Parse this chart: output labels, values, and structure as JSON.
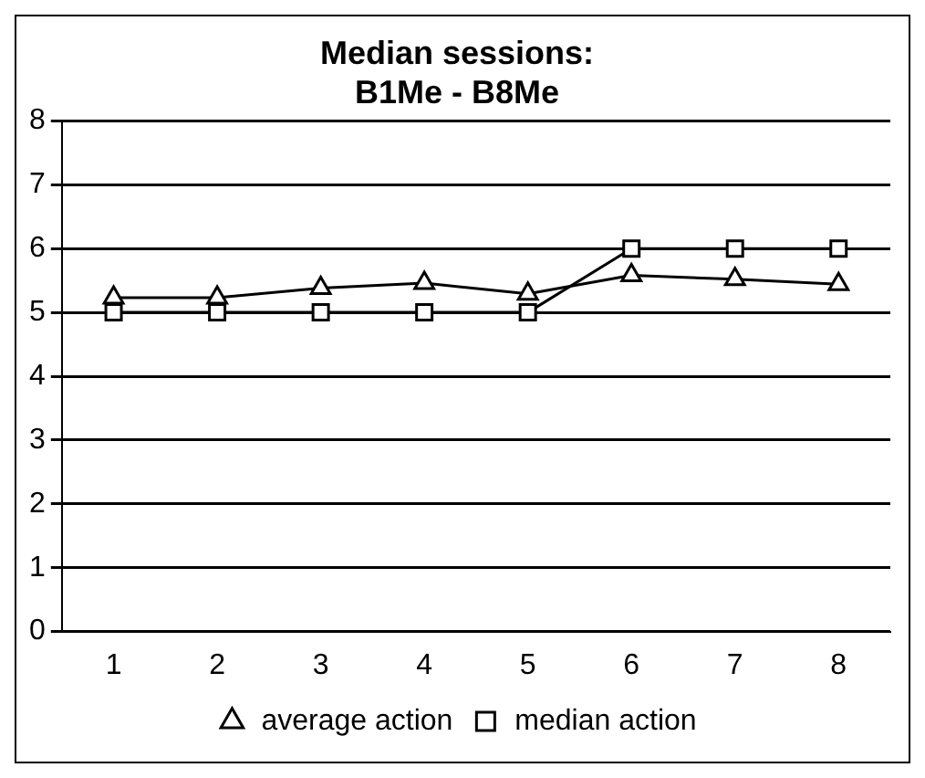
{
  "chart_data": {
    "type": "line",
    "title": [
      "Median sessions:",
      "B1Me - B8Me"
    ],
    "categories": [
      "1",
      "2",
      "3",
      "4",
      "5",
      "6",
      "7",
      "8"
    ],
    "series": [
      {
        "name": "average action",
        "color": "#000000",
        "marker": "triangle",
        "values": [
          5.23,
          5.23,
          5.38,
          5.46,
          5.29,
          5.58,
          5.52,
          5.44
        ]
      },
      {
        "name": "median action",
        "color": "#000000",
        "marker": "square",
        "values": [
          5,
          5,
          5,
          5,
          5,
          6,
          6,
          6
        ]
      }
    ],
    "ylim": [
      0,
      8
    ],
    "yticks": [
      0,
      1,
      2,
      3,
      4,
      5,
      6,
      7,
      8
    ],
    "grid": "y",
    "legend": "bottom"
  }
}
